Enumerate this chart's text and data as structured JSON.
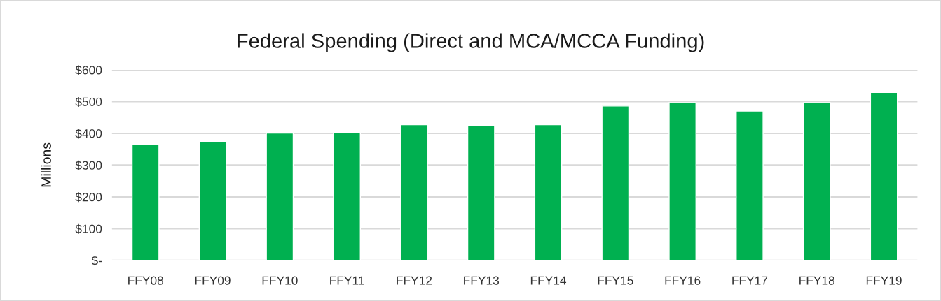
{
  "chart_data": {
    "type": "bar",
    "title": "Federal Spending (Direct and MCA/MCCA Funding)",
    "ylabel": "Millions",
    "categories": [
      "FFY08",
      "FFY09",
      "FFY10",
      "FFY11",
      "FFY12",
      "FFY13",
      "FFY14",
      "FFY15",
      "FFY16",
      "FFY17",
      "FFY18",
      "FFY19"
    ],
    "values": [
      364,
      374,
      401,
      403,
      427,
      425,
      427,
      486,
      497,
      470,
      497,
      529
    ],
    "color": "#00b050",
    "ylim": [
      0,
      600
    ],
    "yticks": [
      {
        "value": 0,
        "label": "$-"
      },
      {
        "value": 100,
        "label": "$100"
      },
      {
        "value": 200,
        "label": "$200"
      },
      {
        "value": 300,
        "label": "$300"
      },
      {
        "value": 400,
        "label": "$400"
      },
      {
        "value": 500,
        "label": "$500"
      },
      {
        "value": 600,
        "label": "$600"
      }
    ],
    "grid": "y"
  }
}
